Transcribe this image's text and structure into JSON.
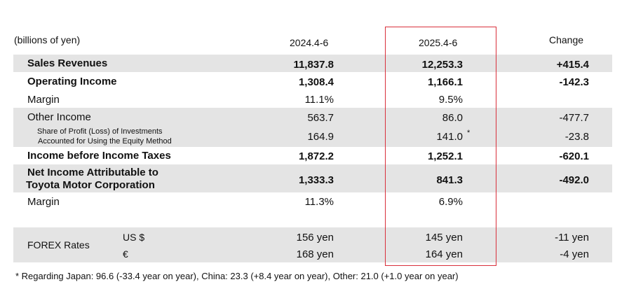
{
  "header": {
    "unit_note": "(billions of yen)",
    "col_prev": "2024.4-6",
    "col_curr": "2025.4-6",
    "col_change": "Change"
  },
  "rows": {
    "sales": {
      "label": "Sales Revenues",
      "prev": "11,837.8",
      "curr": "12,253.3",
      "change": "+415.4"
    },
    "operating": {
      "label": "Operating Income",
      "prev": "1,308.4",
      "curr": "1,166.1",
      "change": "-142.3"
    },
    "margin1": {
      "label": "Margin",
      "prev": "11.1%",
      "curr": "9.5%",
      "change": ""
    },
    "other_income": {
      "label": "Other Income",
      "prev": "563.7",
      "curr": "86.0",
      "change": "-477.7"
    },
    "equity": {
      "label_line1": "Share of Profit (Loss) of Investments",
      "label_line2": "Accounted for Using the Equity Method",
      "prev": "164.9",
      "curr": "141.0",
      "curr_mark": "*",
      "change": "-23.8"
    },
    "pretax": {
      "label": "Income before Income Taxes",
      "prev": "1,872.2",
      "curr": "1,252.1",
      "change": "-620.1"
    },
    "net": {
      "label_line1": "Net Income Attributable to",
      "label_line2": "Toyota Motor Corporation",
      "prev": "1,333.3",
      "curr": "841.3",
      "change": "-492.0"
    },
    "margin2": {
      "label": "Margin",
      "prev": "11.3%",
      "curr": "6.9%",
      "change": ""
    }
  },
  "forex": {
    "label": "FOREX Rates",
    "usd": {
      "currency": "US $",
      "prev": "156 yen",
      "curr": "145 yen",
      "change": "-11 yen"
    },
    "eur": {
      "currency": "€",
      "prev": "168 yen",
      "curr": "164 yen",
      "change": "-4 yen"
    }
  },
  "footnote": "* Regarding Japan: 96.6 (-33.4 year on year), China: 23.3  (+8.4 year on year), Other: 21.0 (+1.0 year on year)",
  "colors": {
    "band": "#e4e4e4",
    "highlight_box": "#d9303b"
  }
}
